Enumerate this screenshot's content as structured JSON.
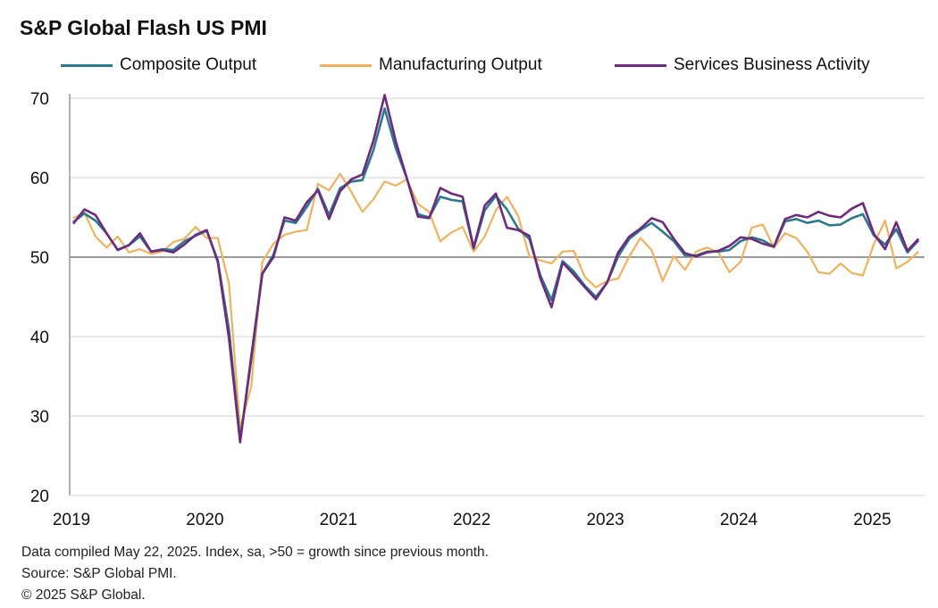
{
  "chart_data": {
    "type": "line",
    "title": "S&P Global Flash US PMI",
    "xlabel": "",
    "ylabel": "",
    "ylim": [
      20,
      70
    ],
    "yticks": [
      20,
      30,
      40,
      50,
      60,
      70
    ],
    "reference_line": 50,
    "grid": true,
    "legend_position": "top",
    "x_start": "2019-01",
    "x_end": "2025-05",
    "x_tick_labels": [
      "2019",
      "2020",
      "2021",
      "2022",
      "2023",
      "2024",
      "2025"
    ],
    "series": [
      {
        "name": "Composite Output",
        "color": "#2b7a8b",
        "values": [
          54.4,
          55.5,
          54.6,
          53.0,
          50.9,
          51.5,
          52.6,
          50.7,
          51.0,
          50.9,
          52.0,
          52.7,
          53.3,
          49.6,
          40.9,
          27.0,
          37.0,
          47.9,
          50.3,
          54.6,
          54.3,
          56.3,
          58.6,
          55.3,
          58.7,
          59.5,
          59.7,
          63.5,
          68.7,
          63.7,
          59.9,
          55.4,
          55.0,
          57.6,
          57.2,
          57.0,
          51.1,
          55.9,
          57.7,
          56.0,
          53.6,
          52.3,
          47.7,
          44.6,
          49.5,
          48.2,
          46.4,
          45.0,
          46.8,
          50.1,
          52.3,
          53.4,
          54.3,
          53.2,
          52.0,
          50.2,
          50.2,
          50.7,
          50.7,
          50.9,
          52.0,
          52.5,
          52.1,
          51.3,
          54.5,
          54.8,
          54.3,
          54.6,
          54.0,
          54.1,
          54.9,
          55.4,
          52.7,
          51.6,
          53.5,
          50.6,
          52.1
        ]
      },
      {
        "name": "Manufacturing Output",
        "color": "#f0b25e",
        "values": [
          54.9,
          55.6,
          52.6,
          51.2,
          52.6,
          50.6,
          51.0,
          50.4,
          50.7,
          51.9,
          52.3,
          53.8,
          52.4,
          52.4,
          46.7,
          28.5,
          33.7,
          49.4,
          51.7,
          52.8,
          53.2,
          53.4,
          59.2,
          58.4,
          60.5,
          58.2,
          55.7,
          57.3,
          59.5,
          59.0,
          59.8,
          56.7,
          55.7,
          52.0,
          53.1,
          53.8,
          50.7,
          52.6,
          55.9,
          57.6,
          55.2,
          50.1,
          49.6,
          49.2,
          50.7,
          50.8,
          47.5,
          46.2,
          47.0,
          47.3,
          50.1,
          52.4,
          50.9,
          47.0,
          50.1,
          48.4,
          50.7,
          51.2,
          50.6,
          48.1,
          49.4,
          53.7,
          54.1,
          51.2,
          53.0,
          52.4,
          50.7,
          48.1,
          47.9,
          49.2,
          48.0,
          47.7,
          51.7,
          54.6,
          48.6,
          49.4,
          50.7
        ]
      },
      {
        "name": "Services Business Activity",
        "color": "#6d2a7e",
        "values": [
          54.2,
          56.0,
          55.3,
          53.0,
          50.9,
          51.5,
          53.0,
          50.7,
          50.9,
          50.6,
          51.6,
          52.8,
          53.4,
          49.4,
          39.8,
          26.7,
          37.5,
          47.9,
          50.0,
          55.0,
          54.6,
          56.9,
          58.4,
          54.8,
          58.3,
          59.8,
          60.4,
          64.7,
          70.4,
          64.6,
          59.9,
          55.1,
          54.9,
          58.7,
          58.0,
          57.6,
          51.2,
          56.5,
          58.0,
          53.7,
          53.4,
          52.7,
          47.3,
          43.7,
          49.3,
          47.8,
          46.2,
          44.7,
          46.8,
          50.6,
          52.6,
          53.6,
          54.9,
          54.4,
          52.3,
          50.5,
          50.1,
          50.6,
          50.8,
          51.4,
          52.5,
          52.3,
          51.7,
          51.3,
          54.8,
          55.3,
          55.0,
          55.7,
          55.2,
          55.0,
          56.1,
          56.8,
          52.9,
          51.0,
          54.4,
          50.8,
          52.3
        ]
      }
    ]
  },
  "footer": {
    "note": "Data compiled May 22, 2025. Index, sa, >50 = growth since previous month.",
    "source": "Source: S&P Global PMI.",
    "copyright": "© 2025 S&P Global."
  }
}
